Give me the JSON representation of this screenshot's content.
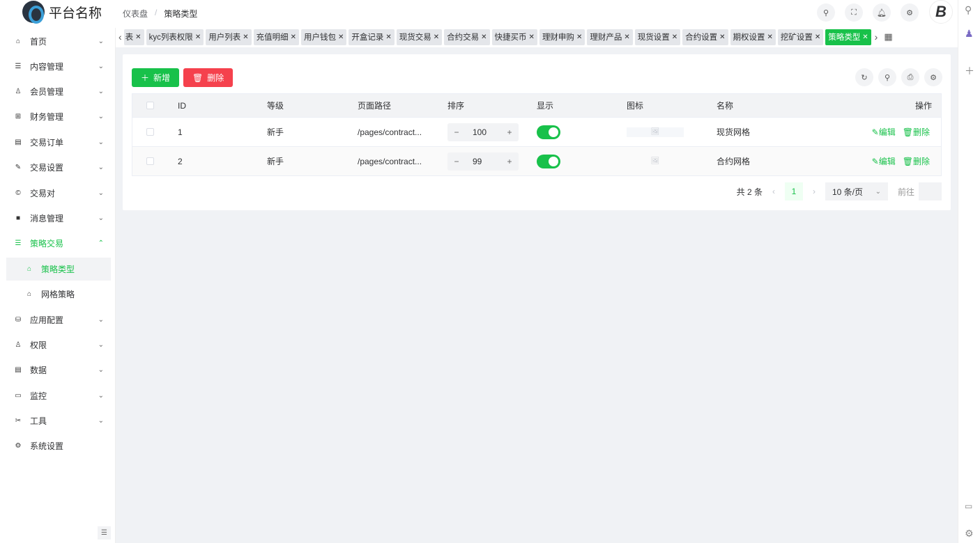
{
  "app": {
    "title": "平台名称"
  },
  "breadcrumb": [
    "仪表盘",
    "策略类型"
  ],
  "sidebar": {
    "items": [
      {
        "label": "首页",
        "icon": "home-icon",
        "glyph": "⌂",
        "chev": "⌄"
      },
      {
        "label": "内容管理",
        "icon": "list-icon",
        "glyph": "☰",
        "chev": "⌄"
      },
      {
        "label": "会员管理",
        "icon": "user-icon",
        "glyph": "♙",
        "chev": "⌄"
      },
      {
        "label": "财务管理",
        "icon": "table-icon",
        "glyph": "⊞",
        "chev": "⌄"
      },
      {
        "label": "交易订单",
        "icon": "order-icon",
        "glyph": "▤",
        "chev": "⌄"
      },
      {
        "label": "交易设置",
        "icon": "wrench-icon",
        "glyph": "✎",
        "chev": "⌄"
      },
      {
        "label": "交易对",
        "icon": "copyright-icon",
        "glyph": "©",
        "chev": "⌄"
      },
      {
        "label": "消息管理",
        "icon": "message-icon",
        "glyph": "■",
        "chev": "⌄"
      },
      {
        "label": "策略交易",
        "icon": "menu-icon",
        "glyph": "☰",
        "chev": "⌃"
      },
      {
        "label": "策略类型",
        "icon": "home-icon",
        "glyph": "⌂"
      },
      {
        "label": "网格策略",
        "icon": "home-icon",
        "glyph": "⌂"
      },
      {
        "label": "应用配置",
        "icon": "config-icon",
        "glyph": "⛁",
        "chev": "⌄"
      },
      {
        "label": "权限",
        "icon": "user-permission-icon",
        "glyph": "♙",
        "chev": "⌄"
      },
      {
        "label": "数据",
        "icon": "data-icon",
        "glyph": "▤",
        "chev": "⌄"
      },
      {
        "label": "监控",
        "icon": "monitor-icon",
        "glyph": "▭",
        "chev": "⌄"
      },
      {
        "label": "工具",
        "icon": "tools-icon",
        "glyph": "✂",
        "chev": "⌄"
      },
      {
        "label": "系统设置",
        "icon": "gear-icon",
        "glyph": "⚙"
      }
    ]
  },
  "tabs": [
    "表",
    "kyc列表权限",
    "用户列表",
    "充值明细",
    "用户钱包",
    "开盒记录",
    "现货交易",
    "合约交易",
    "快捷买币",
    "理财申购",
    "理财产品",
    "现货设置",
    "合约设置",
    "期权设置",
    "挖矿设置",
    "策略类型"
  ],
  "toolbar": {
    "add": "新增",
    "delete": "删除"
  },
  "table": {
    "columns": [
      "ID",
      "等级",
      "页面路径",
      "排序",
      "显示",
      "图标",
      "名称",
      "操作"
    ],
    "rows": [
      {
        "id": "1",
        "level": "新手",
        "path": "/pages/contract...",
        "sort": "100",
        "show": true,
        "name": "现货网格",
        "edit": "编辑",
        "del": "删除"
      },
      {
        "id": "2",
        "level": "新手",
        "path": "/pages/contract...",
        "sort": "99",
        "show": true,
        "name": "合约网格",
        "edit": "编辑",
        "del": "删除"
      }
    ]
  },
  "pager": {
    "total": "共 2 条",
    "current": "1",
    "size": "10 条/页",
    "goto": "前往"
  },
  "colors": {
    "accent": "#18c14a",
    "danger": "#f5414d"
  }
}
